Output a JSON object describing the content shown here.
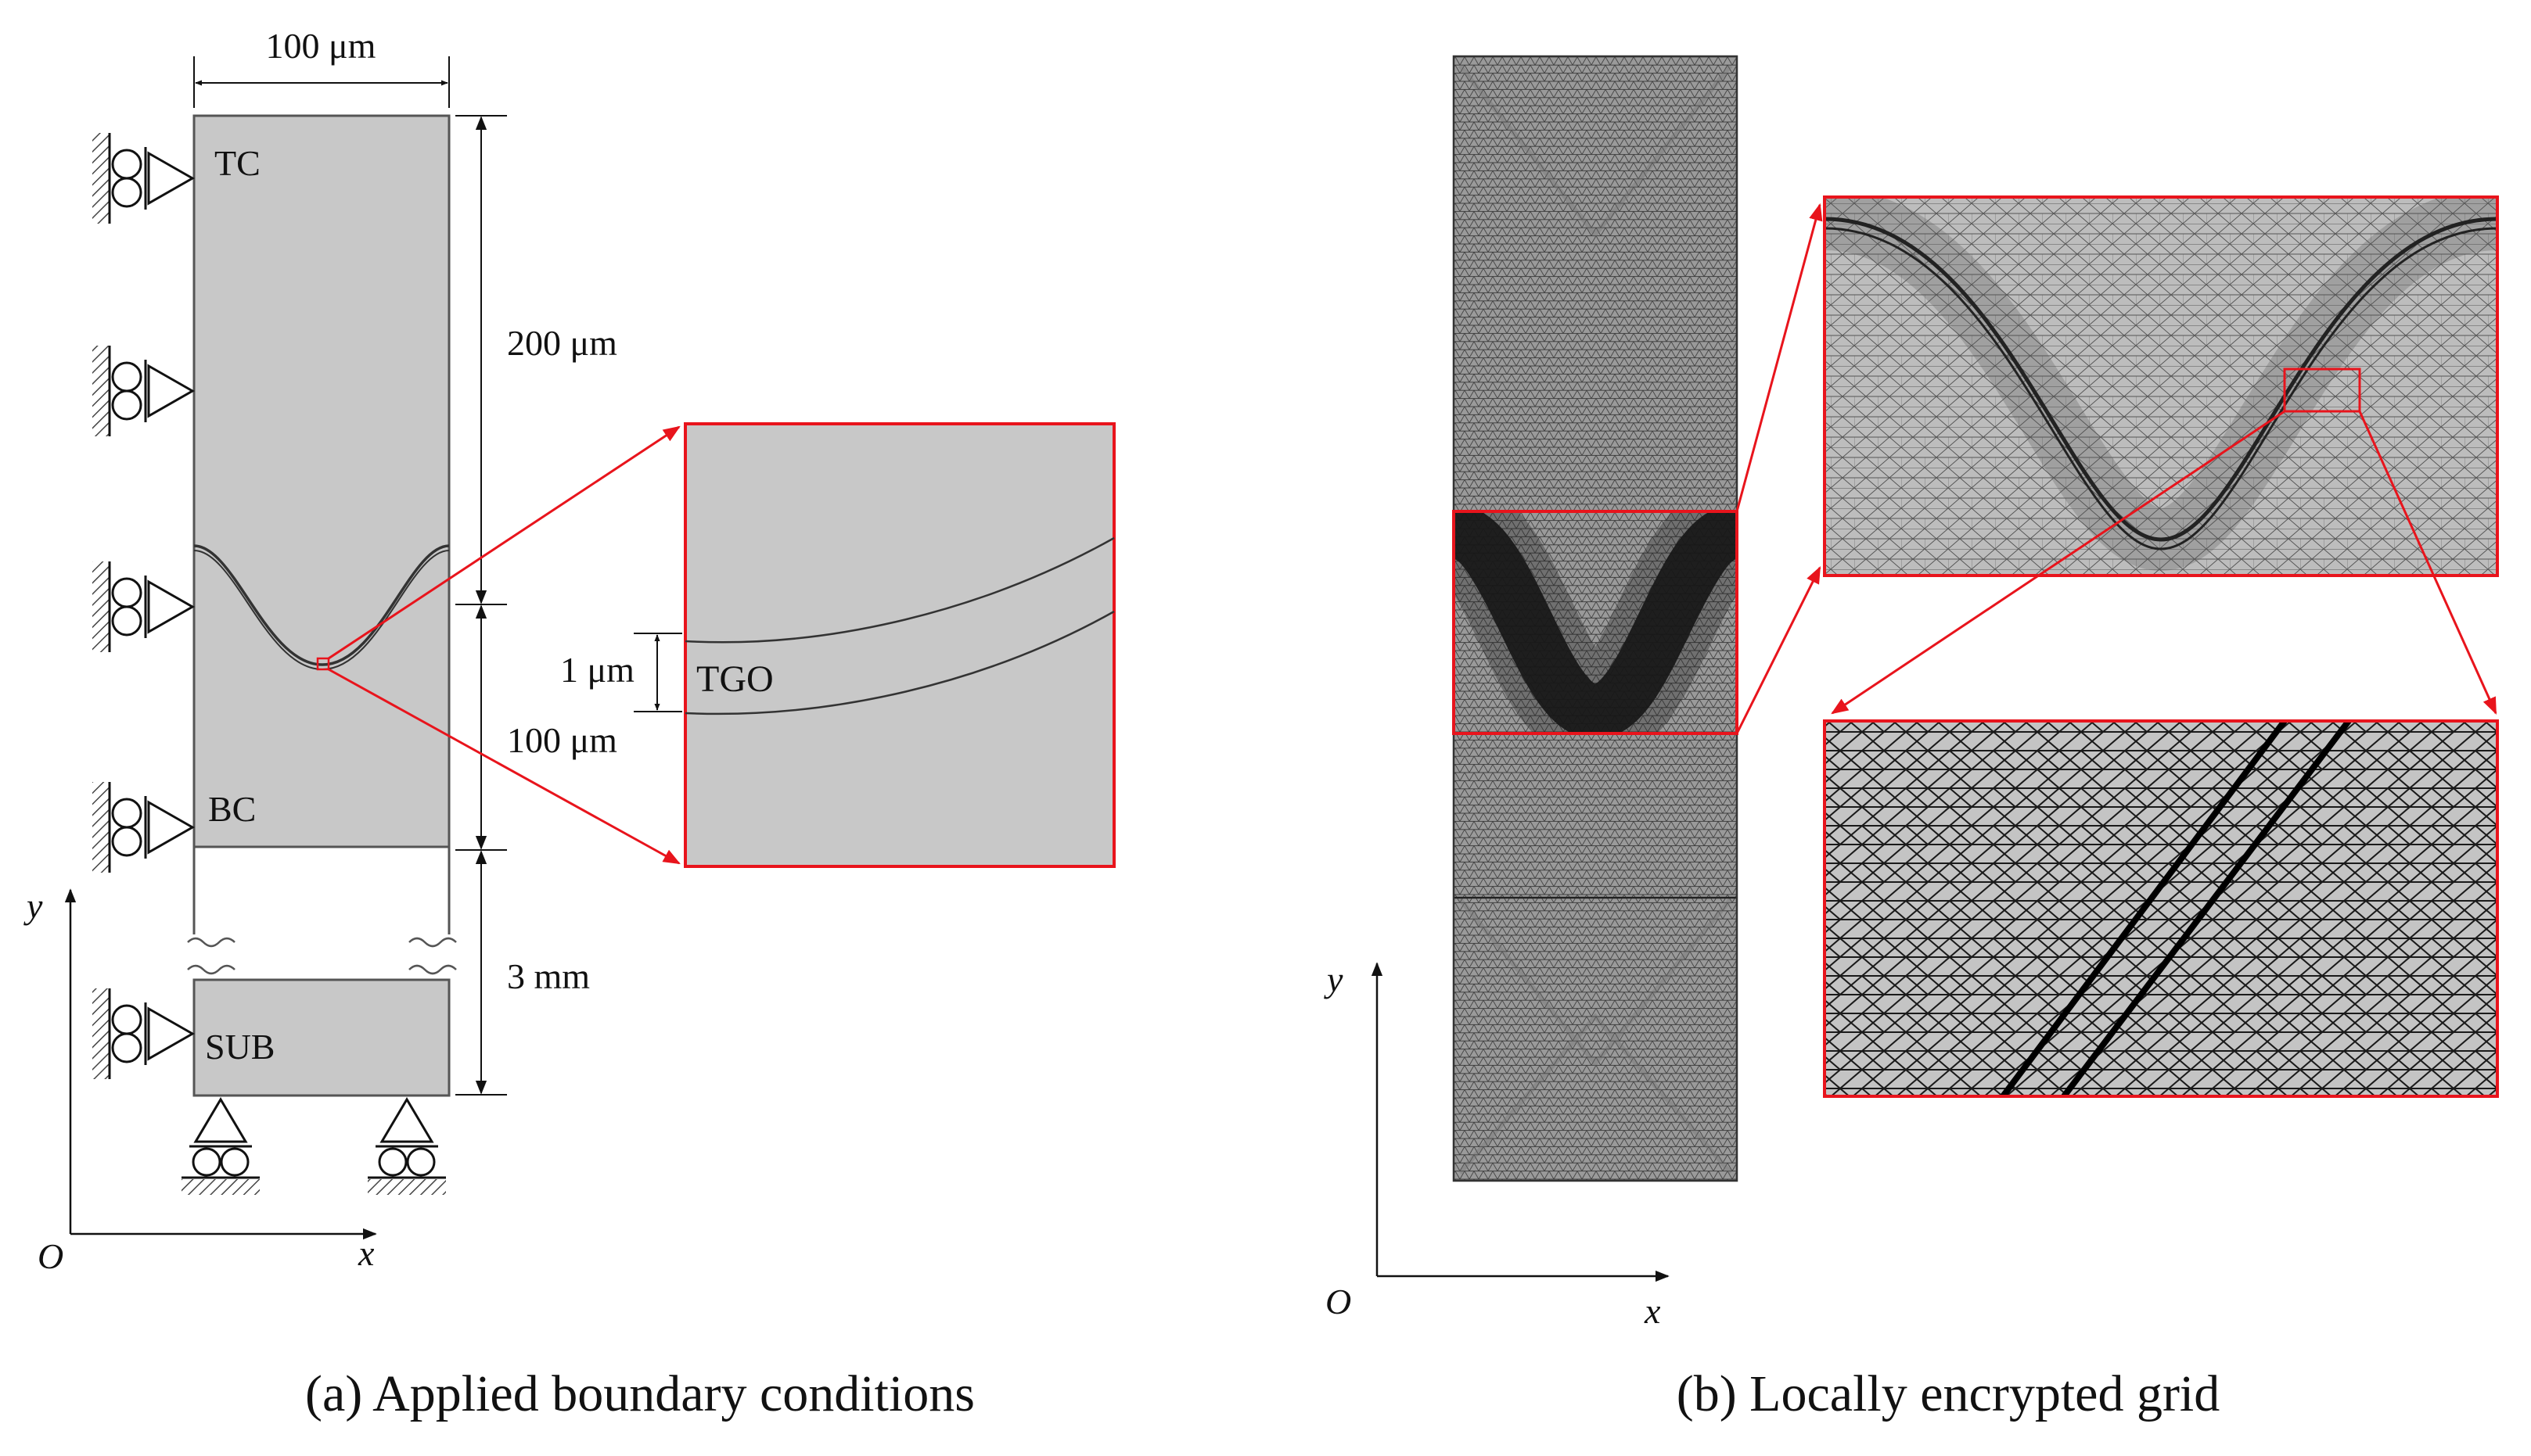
{
  "panel_a": {
    "caption": "(a) Applied boundary conditions",
    "width_label": "100 μm",
    "layers": {
      "tc": "TC",
      "bc": "BC",
      "sub": "SUB",
      "tgo": "TGO"
    },
    "dims": {
      "tc_height": "200 μm",
      "bc_height": "100 μm",
      "sub_height": "3 mm",
      "tgo_thickness": "1 μm"
    },
    "axes": {
      "y": "y",
      "x": "x",
      "origin": "O"
    }
  },
  "panel_b": {
    "caption": "(b) Locally encrypted grid",
    "axes": {
      "y": "y",
      "x": "x",
      "origin": "O"
    }
  },
  "colors": {
    "fill": "#c8c8c8",
    "accent": "#e8141c",
    "line": "#222222",
    "mesh": "#3a3a3a"
  }
}
